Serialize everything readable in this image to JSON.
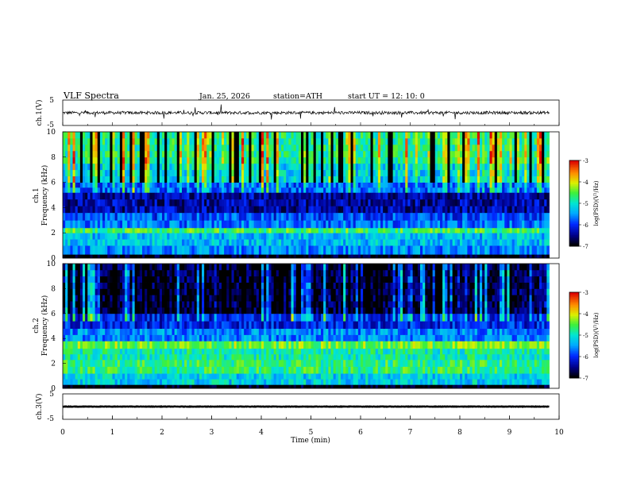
{
  "header": {
    "title": "VLF  Spectra",
    "date": "Jan.  25,  2026",
    "station": "station=ATH",
    "start": "start  UT  =   12: 10: 0"
  },
  "chart_data": [
    {
      "type": "line",
      "name": "ch1-waveform",
      "ylabel": "ch.1(V)",
      "ylim": [
        -5,
        5
      ],
      "y_ticks": [
        "5",
        "-5"
      ],
      "xlim": [
        0,
        10
      ],
      "baseline": 0,
      "noise_amplitude": 1.2
    },
    {
      "type": "heatmap",
      "name": "ch1-spectrogram",
      "ylabel_top": "ch.1",
      "ylabel": "Frequency  (kHz)",
      "ylim": [
        0,
        10
      ],
      "y_ticks": [
        "0",
        "2",
        "4",
        "6",
        "8",
        "10"
      ],
      "xlim": [
        0,
        9.8
      ],
      "colorbar": {
        "label": "log(PSD)(V²/Hz)",
        "range": [
          -7,
          -3
        ],
        "ticks": [
          "-3",
          "-4",
          "-5",
          "-6",
          "-7"
        ]
      },
      "bands_khz": [
        {
          "from": 0,
          "to": 0.3,
          "level": -7
        },
        {
          "from": 0.3,
          "to": 1.0,
          "level": -5.6
        },
        {
          "from": 1.0,
          "to": 2.0,
          "level": -5.3
        },
        {
          "from": 2.0,
          "to": 2.4,
          "level": -4.6
        },
        {
          "from": 2.4,
          "to": 3.0,
          "level": -5.7
        },
        {
          "from": 3.0,
          "to": 3.6,
          "level": -5.9
        },
        {
          "from": 3.6,
          "to": 5.2,
          "level": -6.4
        },
        {
          "from": 5.2,
          "to": 6.0,
          "level": -5.8
        },
        {
          "from": 6.0,
          "to": 7.5,
          "level": -5.2
        },
        {
          "from": 7.5,
          "to": 10,
          "level": -4.8
        }
      ]
    },
    {
      "type": "heatmap",
      "name": "ch2-spectrogram",
      "ylabel_top": "ch.2",
      "ylabel": "Frequency  (kHz)",
      "ylim": [
        0,
        10
      ],
      "y_ticks": [
        "0",
        "2",
        "4",
        "6",
        "8",
        "10"
      ],
      "xlim": [
        0,
        9.8
      ],
      "colorbar": {
        "label": "log(PSD)(V²/Hz)",
        "range": [
          -7,
          -3
        ],
        "ticks": [
          "-3",
          "-4",
          "-5",
          "-6",
          "-7"
        ]
      },
      "bands_khz": [
        {
          "from": 0,
          "to": 0.3,
          "level": -7
        },
        {
          "from": 0.3,
          "to": 1.2,
          "level": -5.2
        },
        {
          "from": 1.2,
          "to": 2.3,
          "level": -4.7
        },
        {
          "from": 2.3,
          "to": 3.2,
          "level": -4.9
        },
        {
          "from": 3.2,
          "to": 3.8,
          "level": -4.4
        },
        {
          "from": 3.8,
          "to": 4.8,
          "level": -5.6
        },
        {
          "from": 4.8,
          "to": 6.0,
          "level": -6.1
        },
        {
          "from": 6.0,
          "to": 10,
          "level": -6.8
        }
      ]
    },
    {
      "type": "line",
      "name": "ch3-waveform",
      "ylabel": "ch.3(V)",
      "ylim": [
        -5,
        5
      ],
      "y_ticks": [
        "5",
        "-5"
      ],
      "xlim": [
        0,
        10
      ],
      "baseline": 0,
      "noise_amplitude": 0.15
    }
  ],
  "x_axis": {
    "label": "Time  (min)",
    "ticks": [
      "0",
      "1",
      "2",
      "3",
      "4",
      "5",
      "6",
      "7",
      "8",
      "9",
      "10"
    ]
  }
}
